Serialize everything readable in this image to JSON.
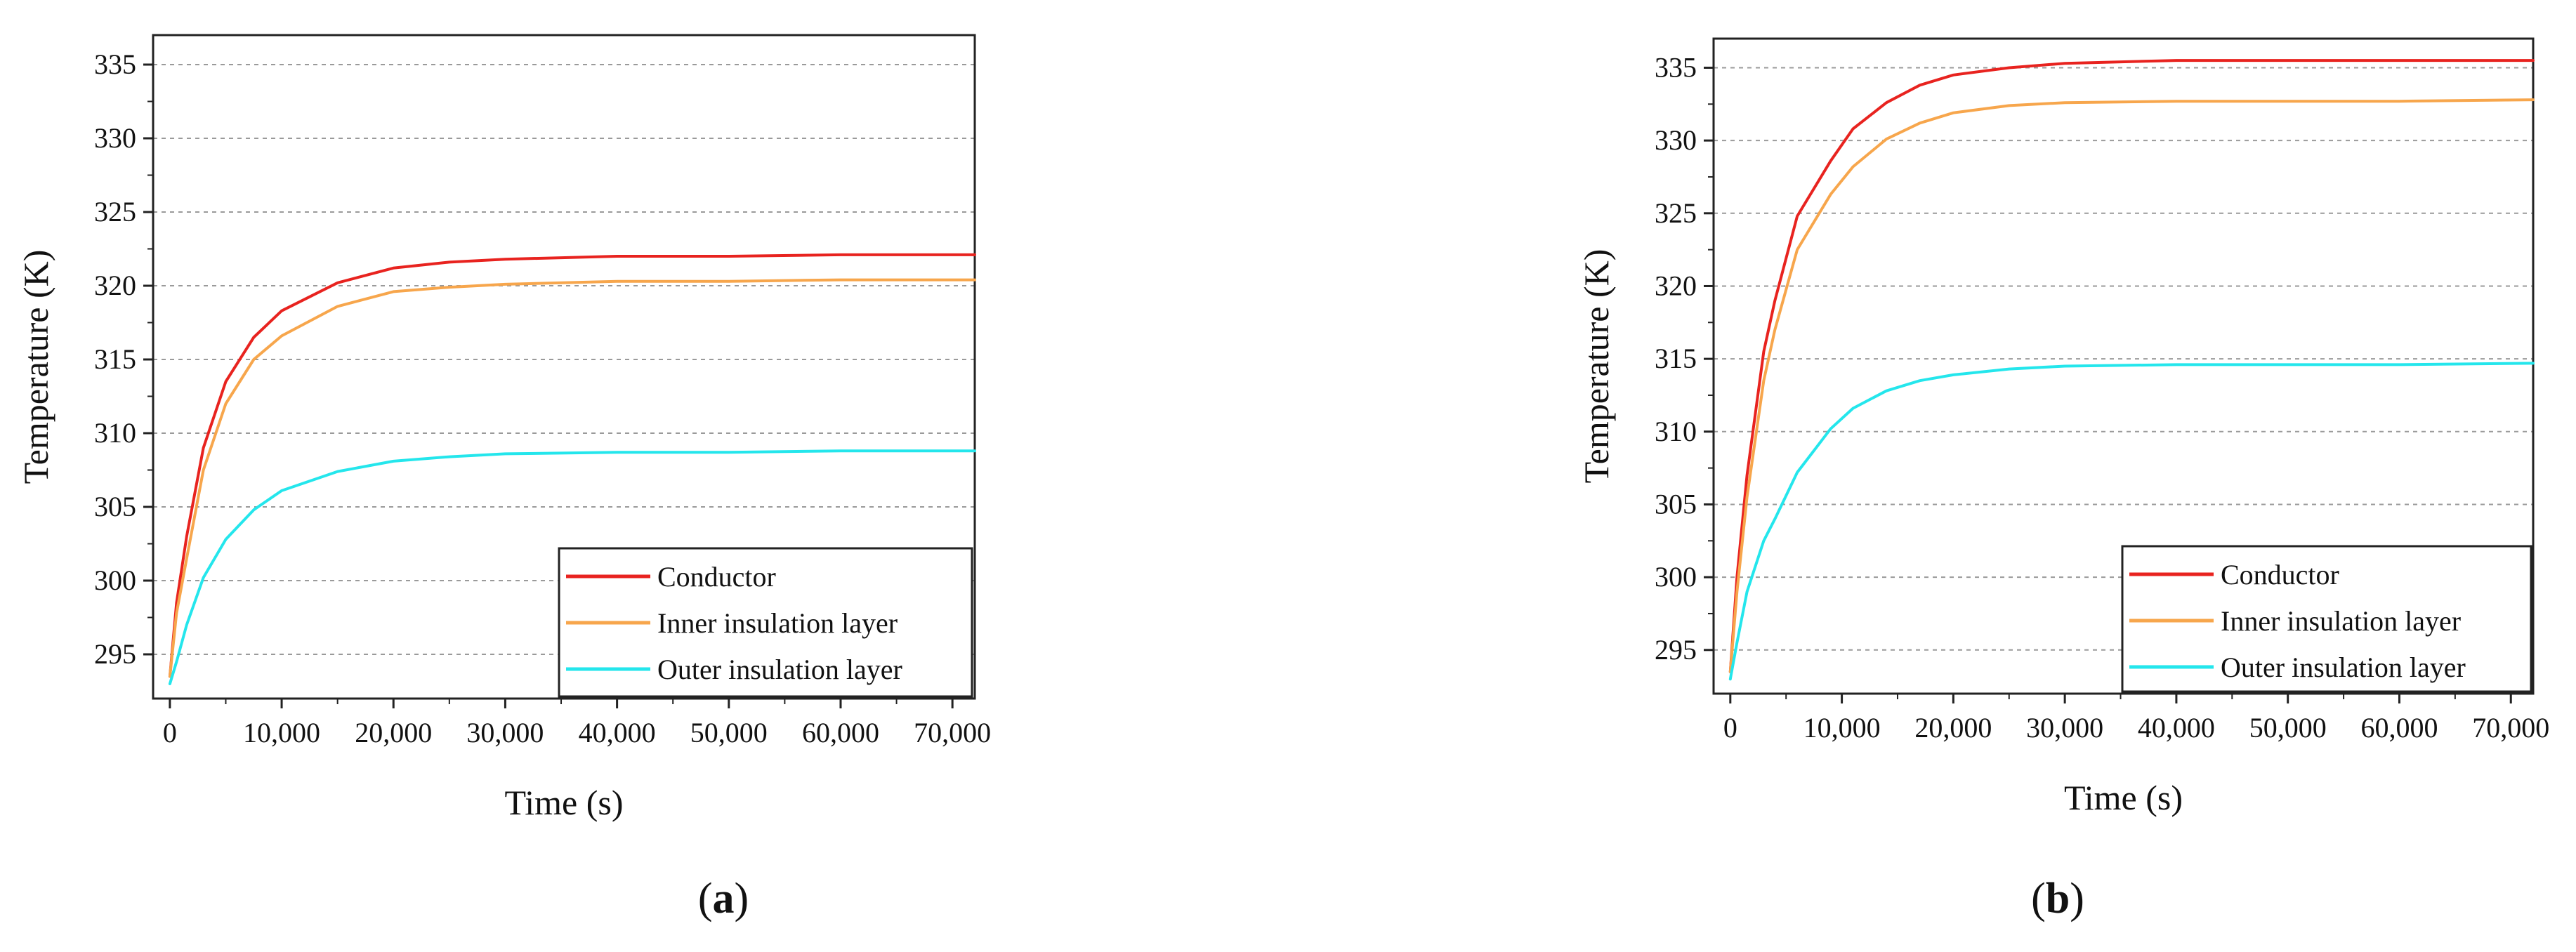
{
  "chart_data": [
    {
      "type": "line",
      "panel_label": "a",
      "xlabel": "Time (s)",
      "ylabel": "Temperature (K)",
      "xlim": [
        -1500,
        72000
      ],
      "ylim": [
        292,
        337
      ],
      "xticks": [
        0,
        10000,
        20000,
        30000,
        40000,
        50000,
        60000,
        70000
      ],
      "xtick_labels": [
        "0",
        "10,000",
        "20,000",
        "30,000",
        "40,000",
        "50,000",
        "60,000",
        "70,000"
      ],
      "yticks": [
        295,
        300,
        305,
        310,
        315,
        320,
        325,
        330,
        335
      ],
      "ytick_labels": [
        "295",
        "300",
        "305",
        "310",
        "315",
        "320",
        "325",
        "330",
        "335"
      ],
      "grid": "horizontal dashed",
      "legend_position": "bottom-right",
      "series": [
        {
          "name": "Conductor",
          "color": "#e8231f",
          "x": [
            0,
            600,
            1500,
            3000,
            5000,
            7500,
            10000,
            15000,
            20000,
            25000,
            30000,
            40000,
            50000,
            60000,
            72000
          ],
          "y": [
            293.5,
            298.5,
            303.0,
            309.0,
            313.5,
            316.5,
            318.3,
            320.2,
            321.2,
            321.6,
            321.8,
            322.0,
            322.0,
            322.1,
            322.1
          ]
        },
        {
          "name": "Inner insulation layer",
          "color": "#f7a64c",
          "x": [
            0,
            600,
            1500,
            3000,
            5000,
            7500,
            10000,
            15000,
            20000,
            25000,
            30000,
            40000,
            50000,
            60000,
            72000
          ],
          "y": [
            293.5,
            297.8,
            301.5,
            307.5,
            312.0,
            315.0,
            316.6,
            318.6,
            319.6,
            319.9,
            320.1,
            320.3,
            320.3,
            320.4,
            320.4
          ]
        },
        {
          "name": "Outer insulation layer",
          "color": "#24e6ec",
          "x": [
            0,
            600,
            1500,
            3000,
            5000,
            7500,
            10000,
            15000,
            20000,
            25000,
            30000,
            40000,
            50000,
            60000,
            72000
          ],
          "y": [
            293.0,
            294.5,
            297.0,
            300.2,
            302.8,
            304.8,
            306.1,
            307.4,
            308.1,
            308.4,
            308.6,
            308.7,
            308.7,
            308.8,
            308.8
          ]
        }
      ]
    },
    {
      "type": "line",
      "panel_label": "b",
      "xlabel": "Time (s)",
      "ylabel": "Temperature (K)",
      "xlim": [
        -1500,
        72000
      ],
      "ylim": [
        292,
        337
      ],
      "xticks": [
        0,
        10000,
        20000,
        30000,
        40000,
        50000,
        60000,
        70000
      ],
      "xtick_labels": [
        "0",
        "10,000",
        "20,000",
        "30,000",
        "40,000",
        "50,000",
        "60,000",
        "70,000"
      ],
      "yticks": [
        295,
        300,
        305,
        310,
        315,
        320,
        325,
        330,
        335
      ],
      "ytick_labels": [
        "295",
        "300",
        "305",
        "310",
        "315",
        "320",
        "325",
        "330",
        "335"
      ],
      "grid": "horizontal dashed",
      "legend_position": "bottom-right",
      "series": [
        {
          "name": "Conductor",
          "color": "#e8231f",
          "x": [
            0,
            600,
            1500,
            3000,
            4000,
            6000,
            9000,
            11000,
            14000,
            17000,
            20000,
            25000,
            30000,
            40000,
            50000,
            60000,
            72000
          ],
          "y": [
            293.5,
            300.0,
            307.0,
            315.5,
            319.0,
            324.8,
            328.6,
            330.8,
            332.6,
            333.8,
            334.5,
            335.0,
            335.3,
            335.5,
            335.5,
            335.5,
            335.5
          ]
        },
        {
          "name": "Inner insulation layer",
          "color": "#f7a64c",
          "x": [
            0,
            600,
            1500,
            3000,
            4000,
            6000,
            9000,
            11000,
            14000,
            17000,
            20000,
            25000,
            30000,
            40000,
            50000,
            60000,
            72000
          ],
          "y": [
            293.5,
            299.0,
            305.5,
            313.5,
            317.0,
            322.5,
            326.3,
            328.2,
            330.1,
            331.2,
            331.9,
            332.4,
            332.6,
            332.7,
            332.7,
            332.7,
            332.8
          ]
        },
        {
          "name": "Outer insulation layer",
          "color": "#24e6ec",
          "x": [
            0,
            600,
            1500,
            3000,
            4000,
            6000,
            9000,
            11000,
            14000,
            17000,
            20000,
            25000,
            30000,
            40000,
            50000,
            60000,
            72000
          ],
          "y": [
            293.0,
            295.5,
            299.0,
            302.5,
            304.0,
            307.2,
            310.2,
            311.6,
            312.8,
            313.5,
            313.9,
            314.3,
            314.5,
            314.6,
            314.6,
            314.6,
            314.7
          ]
        }
      ]
    }
  ]
}
